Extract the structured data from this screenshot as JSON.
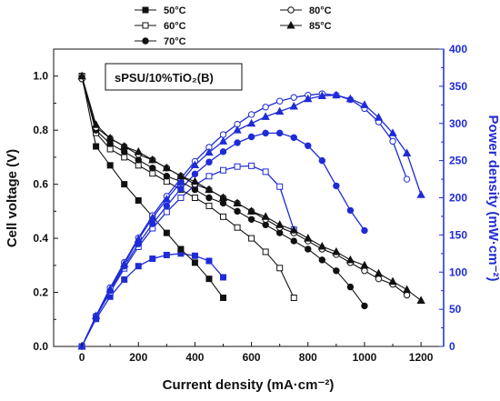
{
  "chart_data": {
    "type": "line",
    "annotation": "sPSU/10%TiO₂(B)",
    "xlabel": "Current density (mA·cm⁻²)",
    "ylabel_left": "Cell voltage (V)",
    "ylabel_right": "Power density (mW·cm⁻²)",
    "x_range": [
      -100,
      1280
    ],
    "x_ticks": [
      0,
      200,
      400,
      600,
      800,
      1000,
      1200
    ],
    "y_left_range": [
      0.0,
      1.1
    ],
    "y_left_ticks": [
      "0.0",
      "0.2",
      "0.4",
      "0.6",
      "0.8",
      "1.0"
    ],
    "y_right_range": [
      0,
      400
    ],
    "y_right_ticks": [
      0,
      50,
      100,
      150,
      200,
      250,
      300,
      350,
      400
    ],
    "grid": false,
    "legend_position": "top, above plot, two columns",
    "colors": {
      "voltage": "#111111",
      "power": "#1f2bd6"
    },
    "series": [
      {
        "name": "50°C",
        "marker": "square-filled",
        "x": [
          0,
          50,
          100,
          150,
          200,
          250,
          300,
          350,
          400,
          450,
          500
        ],
        "voltage": [
          1.0,
          0.74,
          0.67,
          0.6,
          0.54,
          0.48,
          0.42,
          0.36,
          0.31,
          0.25,
          0.18
        ],
        "power": [
          0,
          37,
          67,
          90,
          108,
          118,
          123,
          125,
          122,
          115,
          93
        ]
      },
      {
        "name": "60°C",
        "marker": "square-open",
        "x": [
          0,
          50,
          100,
          150,
          200,
          250,
          300,
          350,
          400,
          450,
          500,
          550,
          600,
          650,
          700,
          750
        ],
        "voltage": [
          1.0,
          0.79,
          0.73,
          0.7,
          0.67,
          0.64,
          0.61,
          0.58,
          0.55,
          0.52,
          0.48,
          0.44,
          0.4,
          0.35,
          0.29,
          0.18
        ],
        "power": [
          0,
          40,
          73,
          105,
          134,
          159,
          181,
          200,
          217,
          229,
          237,
          242,
          243,
          235,
          215,
          157
        ]
      },
      {
        "name": "70°C",
        "marker": "circle-filled",
        "x": [
          0,
          50,
          100,
          150,
          200,
          250,
          300,
          350,
          400,
          450,
          500,
          550,
          600,
          650,
          700,
          750,
          800,
          850,
          900,
          950,
          1000
        ],
        "voltage": [
          0.99,
          0.8,
          0.75,
          0.72,
          0.69,
          0.66,
          0.63,
          0.61,
          0.58,
          0.55,
          0.53,
          0.5,
          0.47,
          0.45,
          0.42,
          0.39,
          0.36,
          0.32,
          0.28,
          0.22,
          0.15
        ],
        "power": [
          0,
          40,
          75,
          108,
          138,
          165,
          189,
          212,
          232,
          248,
          262,
          274,
          282,
          287,
          287,
          281,
          270,
          250,
          216,
          183,
          156
        ]
      },
      {
        "name": "80°C",
        "marker": "circle-open",
        "x": [
          0,
          50,
          100,
          150,
          200,
          250,
          300,
          350,
          400,
          450,
          500,
          550,
          600,
          650,
          700,
          750,
          800,
          850,
          900,
          950,
          1000,
          1050,
          1100,
          1150
        ],
        "voltage": [
          0.99,
          0.81,
          0.77,
          0.74,
          0.71,
          0.69,
          0.66,
          0.63,
          0.6,
          0.58,
          0.55,
          0.53,
          0.5,
          0.47,
          0.44,
          0.42,
          0.39,
          0.36,
          0.34,
          0.31,
          0.28,
          0.25,
          0.23,
          0.19
        ],
        "power": [
          0,
          41,
          79,
          113,
          146,
          176,
          202,
          226,
          249,
          268,
          285,
          299,
          312,
          322,
          330,
          335,
          338,
          340,
          338,
          332,
          320,
          302,
          276,
          225
        ]
      },
      {
        "name": "85°C",
        "marker": "triangle-filled",
        "x": [
          0,
          50,
          100,
          150,
          200,
          250,
          300,
          350,
          400,
          450,
          500,
          550,
          600,
          650,
          700,
          750,
          800,
          850,
          900,
          950,
          1000,
          1050,
          1100,
          1150,
          1200
        ],
        "voltage": [
          1.0,
          0.82,
          0.77,
          0.74,
          0.72,
          0.69,
          0.66,
          0.63,
          0.61,
          0.58,
          0.55,
          0.53,
          0.5,
          0.48,
          0.45,
          0.43,
          0.4,
          0.37,
          0.35,
          0.32,
          0.3,
          0.27,
          0.24,
          0.21,
          0.17
        ],
        "power": [
          0,
          41,
          77,
          111,
          144,
          173,
          198,
          221,
          244,
          261,
          276,
          291,
          300,
          309,
          316,
          323,
          333,
          337,
          338,
          333,
          325,
          308,
          287,
          260,
          204
        ]
      }
    ]
  }
}
